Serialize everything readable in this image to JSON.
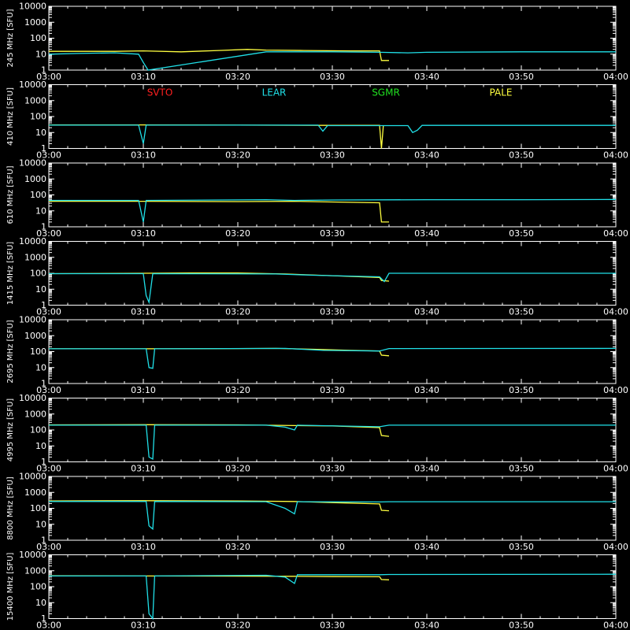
{
  "colors": {
    "background": "#000000",
    "axes": "#ffffff",
    "SVTO": "#ff2020",
    "LEAR": "#20e0e8",
    "SGMR": "#20e020",
    "PALE": "#ffff40"
  },
  "legend": {
    "placement": "top of second panel",
    "entries": [
      "SVTO",
      "LEAR",
      "SGMR",
      "PALE"
    ]
  },
  "chart_data": [
    {
      "type": "line",
      "ylabel": "245 MHz [SFU]",
      "yscale": "log",
      "ylim": [
        1,
        10000
      ],
      "ytick_labels": [
        "1",
        "10",
        "100",
        "1000",
        "10000"
      ],
      "xlim": [
        "03:00",
        "04:00"
      ],
      "xtick_labels": [
        "03:00",
        "03:10",
        "03:20",
        "03:30",
        "03:40",
        "03:50",
        "04:00"
      ],
      "series": [
        {
          "name": "PALE",
          "points": [
            [
              "03:00",
              15
            ],
            [
              "03:07",
              15
            ],
            [
              "03:10",
              16
            ],
            [
              "03:14",
              14
            ],
            [
              "03:18",
              17
            ],
            [
              "03:21",
              20
            ],
            [
              "03:23",
              18
            ],
            [
              "03:27",
              17
            ],
            [
              "03:32",
              16
            ],
            [
              "03:35",
              16
            ],
            [
              "03:35.2",
              4
            ],
            [
              "03:36",
              4
            ]
          ]
        },
        {
          "name": "LEAR",
          "points": [
            [
              "03:00",
              10
            ],
            [
              "03:03",
              11
            ],
            [
              "03:07",
              12
            ],
            [
              "03:09.5",
              10
            ],
            [
              "03:10",
              3
            ],
            [
              "03:10.5",
              1
            ],
            [
              "03:23",
              14
            ],
            [
              "03:30",
              14
            ],
            [
              "03:35",
              13
            ],
            [
              "03:38",
              12
            ],
            [
              "03:40",
              13
            ],
            [
              "03:50",
              14
            ],
            [
              "04:00",
              14
            ]
          ]
        }
      ]
    },
    {
      "type": "line",
      "ylabel": "410 MHz [SFU]",
      "yscale": "log",
      "ylim": [
        1,
        10000
      ],
      "ytick_labels": [
        "1",
        "10",
        "100",
        "1000",
        "10000"
      ],
      "xlim": [
        "03:00",
        "04:00"
      ],
      "xtick_labels": [
        "03:00",
        "03:10",
        "03:20",
        "03:30",
        "03:40",
        "03:50",
        "04:00"
      ],
      "series": [
        {
          "name": "PALE",
          "points": [
            [
              "03:00",
              30
            ],
            [
              "03:10",
              30
            ],
            [
              "03:20",
              29
            ],
            [
              "03:30",
              28
            ],
            [
              "03:35",
              28
            ],
            [
              "03:35.2",
              1
            ],
            [
              "03:35.4",
              28
            ]
          ]
        },
        {
          "name": "LEAR",
          "points": [
            [
              "03:00",
              29
            ],
            [
              "03:09.5",
              29
            ],
            [
              "03:10",
              2
            ],
            [
              "03:10.3",
              29
            ],
            [
              "03:28.5",
              29
            ],
            [
              "03:29",
              12
            ],
            [
              "03:29.5",
              27
            ],
            [
              "03:38",
              27
            ],
            [
              "03:38.5",
              10
            ],
            [
              "03:39",
              14
            ],
            [
              "03:39.5",
              28
            ],
            [
              "04:00",
              28
            ]
          ]
        }
      ]
    },
    {
      "type": "line",
      "ylabel": "610 MHz [SFU]",
      "yscale": "log",
      "ylim": [
        1,
        10000
      ],
      "ytick_labels": [
        "1",
        "10",
        "100",
        "1000",
        "10000"
      ],
      "xlim": [
        "03:00",
        "04:00"
      ],
      "xtick_labels": [
        "03:00",
        "03:10",
        "03:20",
        "03:30",
        "03:40",
        "03:50",
        "04:00"
      ],
      "series": [
        {
          "name": "PALE",
          "points": [
            [
              "03:00",
              40
            ],
            [
              "03:10",
              40
            ],
            [
              "03:20",
              38
            ],
            [
              "03:26",
              40
            ],
            [
              "03:30",
              36
            ],
            [
              "03:35",
              32
            ],
            [
              "03:35.2",
              2
            ],
            [
              "03:36",
              2
            ]
          ]
        },
        {
          "name": "LEAR",
          "points": [
            [
              "03:00",
              45
            ],
            [
              "03:09.5",
              45
            ],
            [
              "03:10",
              2
            ],
            [
              "03:10.3",
              45
            ],
            [
              "03:23",
              50
            ],
            [
              "03:26",
              45
            ],
            [
              "03:30",
              48
            ],
            [
              "03:40",
              50
            ],
            [
              "03:50",
              50
            ],
            [
              "04:00",
              52
            ]
          ]
        }
      ]
    },
    {
      "type": "line",
      "ylabel": "1415 MHz [SFU]",
      "yscale": "log",
      "ylim": [
        1,
        10000
      ],
      "ytick_labels": [
        "1",
        "10",
        "100",
        "1000",
        "10000"
      ],
      "xlim": [
        "03:00",
        "04:00"
      ],
      "xtick_labels": [
        "03:00",
        "03:10",
        "03:20",
        "03:30",
        "03:40",
        "03:50",
        "04:00"
      ],
      "series": [
        {
          "name": "PALE",
          "points": [
            [
              "03:00",
              95
            ],
            [
              "03:10",
              100
            ],
            [
              "03:15",
              105
            ],
            [
              "03:20",
              105
            ],
            [
              "03:25",
              90
            ],
            [
              "03:30",
              70
            ],
            [
              "03:35",
              55
            ],
            [
              "03:35.2",
              35
            ],
            [
              "03:36",
              32
            ]
          ]
        },
        {
          "name": "LEAR",
          "points": [
            [
              "03:00",
              95
            ],
            [
              "03:10",
              95
            ],
            [
              "03:10.3",
              4
            ],
            [
              "03:10.6",
              1.5
            ],
            [
              "03:11",
              95
            ],
            [
              "03:24",
              90
            ],
            [
              "03:28",
              75
            ],
            [
              "03:35",
              60
            ],
            [
              "03:35.5",
              30
            ],
            [
              "03:36",
              100
            ],
            [
              "04:00",
              100
            ]
          ]
        }
      ]
    },
    {
      "type": "line",
      "ylabel": "2695 MHz [SFU]",
      "yscale": "log",
      "ylim": [
        1,
        10000
      ],
      "ytick_labels": [
        "1",
        "10",
        "100",
        "1000",
        "10000"
      ],
      "xlim": [
        "03:00",
        "04:00"
      ],
      "xtick_labels": [
        "03:00",
        "03:10",
        "03:20",
        "03:30",
        "03:40",
        "03:50",
        "04:00"
      ],
      "series": [
        {
          "name": "PALE",
          "points": [
            [
              "03:00",
              150
            ],
            [
              "03:10",
              150
            ],
            [
              "03:20",
              155
            ],
            [
              "03:24",
              160
            ],
            [
              "03:28",
              140
            ],
            [
              "03:32",
              120
            ],
            [
              "03:35",
              110
            ],
            [
              "03:35.2",
              60
            ],
            [
              "03:36",
              55
            ]
          ]
        },
        {
          "name": "LEAR",
          "points": [
            [
              "03:00",
              150
            ],
            [
              "03:10.3",
              150
            ],
            [
              "03:10.6",
              10
            ],
            [
              "03:11",
              9
            ],
            [
              "03:11.2",
              150
            ],
            [
              "03:25",
              160
            ],
            [
              "03:29",
              120
            ],
            [
              "03:35",
              110
            ],
            [
              "03:36",
              155
            ],
            [
              "04:00",
              160
            ]
          ]
        }
      ]
    },
    {
      "type": "line",
      "ylabel": "4995 MHz [SFU]",
      "yscale": "log",
      "ylim": [
        1,
        10000
      ],
      "ytick_labels": [
        "1",
        "10",
        "100",
        "1000",
        "10000"
      ],
      "xlim": [
        "03:00",
        "04:00"
      ],
      "xtick_labels": [
        "03:00",
        "03:10",
        "03:20",
        "03:30",
        "03:40",
        "03:50",
        "04:00"
      ],
      "series": [
        {
          "name": "PALE",
          "points": [
            [
              "03:00",
              210
            ],
            [
              "03:10",
              215
            ],
            [
              "03:20",
              210
            ],
            [
              "03:26",
              190
            ],
            [
              "03:30",
              180
            ],
            [
              "03:35",
              140
            ],
            [
              "03:35.2",
              45
            ],
            [
              "03:36",
              40
            ]
          ]
        },
        {
          "name": "LEAR",
          "points": [
            [
              "03:00",
              200
            ],
            [
              "03:10.3",
              200
            ],
            [
              "03:10.6",
              2
            ],
            [
              "03:11",
              1.5
            ],
            [
              "03:11.2",
              200
            ],
            [
              "03:23",
              200
            ],
            [
              "03:25",
              150
            ],
            [
              "03:26",
              100
            ],
            [
              "03:26.3",
              200
            ],
            [
              "03:35",
              160
            ],
            [
              "03:36",
              200
            ],
            [
              "04:00",
              200
            ]
          ]
        }
      ]
    },
    {
      "type": "line",
      "ylabel": "8800 MHz [SFU]",
      "yscale": "log",
      "ylim": [
        1,
        10000
      ],
      "ytick_labels": [
        "1",
        "10",
        "100",
        "1000",
        "10000"
      ],
      "xlim": [
        "03:00",
        "04:00"
      ],
      "xtick_labels": [
        "03:00",
        "03:10",
        "03:20",
        "03:30",
        "03:40",
        "03:50",
        "04:00"
      ],
      "series": [
        {
          "name": "PALE",
          "points": [
            [
              "03:00",
              290
            ],
            [
              "03:10",
              300
            ],
            [
              "03:20",
              290
            ],
            [
              "03:26",
              270
            ],
            [
              "03:30",
              230
            ],
            [
              "03:35",
              190
            ],
            [
              "03:35.2",
              75
            ],
            [
              "03:36",
              70
            ]
          ]
        },
        {
          "name": "LEAR",
          "points": [
            [
              "03:00",
              270
            ],
            [
              "03:10.3",
              270
            ],
            [
              "03:10.6",
              8
            ],
            [
              "03:11",
              5
            ],
            [
              "03:11.2",
              270
            ],
            [
              "03:23",
              260
            ],
            [
              "03:25",
              100
            ],
            [
              "03:26",
              45
            ],
            [
              "03:26.3",
              260
            ],
            [
              "03:35",
              250
            ],
            [
              "03:36",
              260
            ],
            [
              "04:00",
              260
            ]
          ]
        }
      ]
    },
    {
      "type": "line",
      "ylabel": "15400 MHz [SFU]",
      "yscale": "log",
      "ylim": [
        1,
        10000
      ],
      "ytick_labels": [
        "1",
        "10",
        "100",
        "1000",
        "10000"
      ],
      "xlim": [
        "03:00",
        "04:00"
      ],
      "xtick_labels": [
        "03:00",
        "03:10",
        "03:20",
        "03:30",
        "03:40",
        "03:50",
        "04:00"
      ],
      "series": [
        {
          "name": "PALE",
          "points": [
            [
              "03:00",
              480
            ],
            [
              "03:10",
              470
            ],
            [
              "03:20",
              460
            ],
            [
              "03:26",
              450
            ],
            [
              "03:30",
              430
            ],
            [
              "03:35",
              420
            ],
            [
              "03:35.2",
              280
            ],
            [
              "03:36",
              270
            ]
          ]
        },
        {
          "name": "LEAR",
          "points": [
            [
              "03:00",
              470
            ],
            [
              "03:10.3",
              470
            ],
            [
              "03:10.6",
              2
            ],
            [
              "03:11",
              1
            ],
            [
              "03:11.2",
              470
            ],
            [
              "03:23",
              520
            ],
            [
              "03:25",
              400
            ],
            [
              "03:26",
              160
            ],
            [
              "03:26.3",
              560
            ],
            [
              "03:35",
              560
            ],
            [
              "03:36",
              580
            ],
            [
              "04:00",
              600
            ]
          ]
        }
      ]
    }
  ]
}
